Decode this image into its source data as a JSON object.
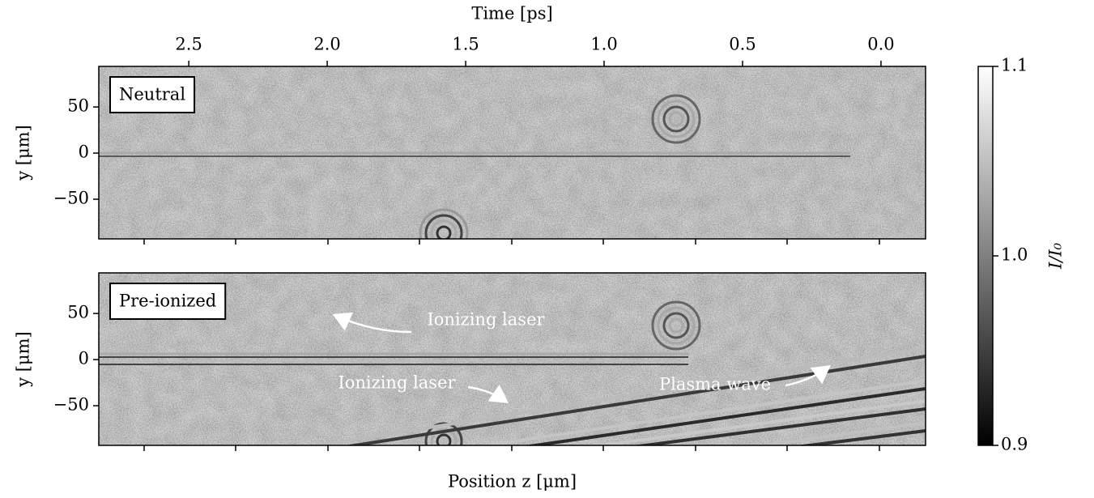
{
  "chart_data": [
    {
      "type": "image",
      "title": "Neutral",
      "ylabel": "y [μm]",
      "ylim": [
        -93,
        94
      ],
      "yticks": [
        50,
        0,
        {
          "value": -50,
          "label": "−50"
        }
      ],
      "top_axis": {
        "label": "Time [ps]",
        "xlim": [
          2.825,
          -0.161
        ],
        "xticks": [
          2.5,
          {
            "value": 2,
            "label": "2.0"
          },
          1.5,
          {
            "value": 1,
            "label": "1.0"
          },
          0.5,
          {
            "value": 0,
            "label": "0.0"
          }
        ]
      }
    },
    {
      "type": "image",
      "title": "Pre-ionized",
      "ylabel": "y [μm]",
      "ylim": [
        -93,
        94
      ],
      "yticks": [
        50,
        0,
        {
          "value": -50,
          "label": "−50"
        }
      ],
      "xlabel": "Position z [μm]",
      "annotations": [
        "Ionizing laser",
        "Ionizing laser",
        "Plasma wave"
      ]
    },
    {
      "type": "colorbar",
      "label": "I/I₀",
      "ylim": [
        0.9,
        1.1
      ],
      "yticks": [
        0.9,
        {
          "value": 1,
          "label": "1.0"
        },
        1.1
      ]
    }
  ]
}
